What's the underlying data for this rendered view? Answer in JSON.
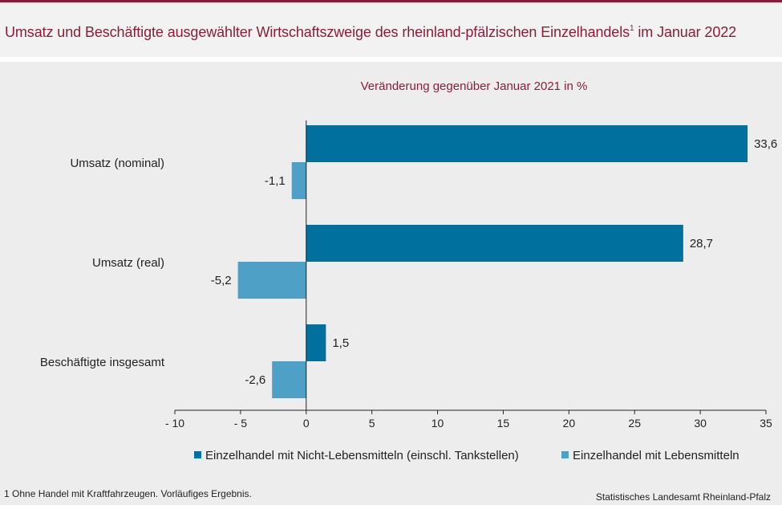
{
  "header": {
    "title": "Umsatz und Beschäftigte ausgewählter Wirtschaftszweige des rheinland-pfälzischen Einzelhandels",
    "title_sup": "1",
    "title_tail": " im Januar 2022"
  },
  "chart_data": {
    "type": "bar",
    "orientation": "horizontal",
    "subtitle": "Veränderung gegenüber Januar 2021 in %",
    "categories": [
      "Umsatz (nominal)",
      "Umsatz (real)",
      "Beschäftigte insgesamt"
    ],
    "series": [
      {
        "name": "Einzelhandel mit Nicht-Lebensmitteln (einschl. Tankstellen)",
        "color": "#00709e",
        "values": [
          33.6,
          28.7,
          1.5
        ],
        "labels": [
          "33,6",
          "28,7",
          "1,5"
        ]
      },
      {
        "name": "Einzelhandel mit Lebensmitteln",
        "color": "#4ea0c6",
        "values": [
          -1.1,
          -5.2,
          -2.6
        ],
        "labels": [
          "-1,1",
          "-5,2",
          "-2,6"
        ]
      }
    ],
    "xlim": [
      -10,
      35
    ],
    "xticks": [
      -10,
      -5,
      0,
      5,
      10,
      15,
      20,
      25,
      30,
      35
    ],
    "xtick_labels": [
      "- 10",
      "- 5",
      "0",
      "5",
      "10",
      "15",
      "20",
      "25",
      "30",
      "35"
    ],
    "grid": false,
    "legend_position": "bottom"
  },
  "footer": {
    "footnote": "1 Ohne Handel mit Kraftfahrzeugen.  Vorläufiges Ergebnis.",
    "source": "Statistisches Landesamt Rheinland-Pfalz"
  }
}
